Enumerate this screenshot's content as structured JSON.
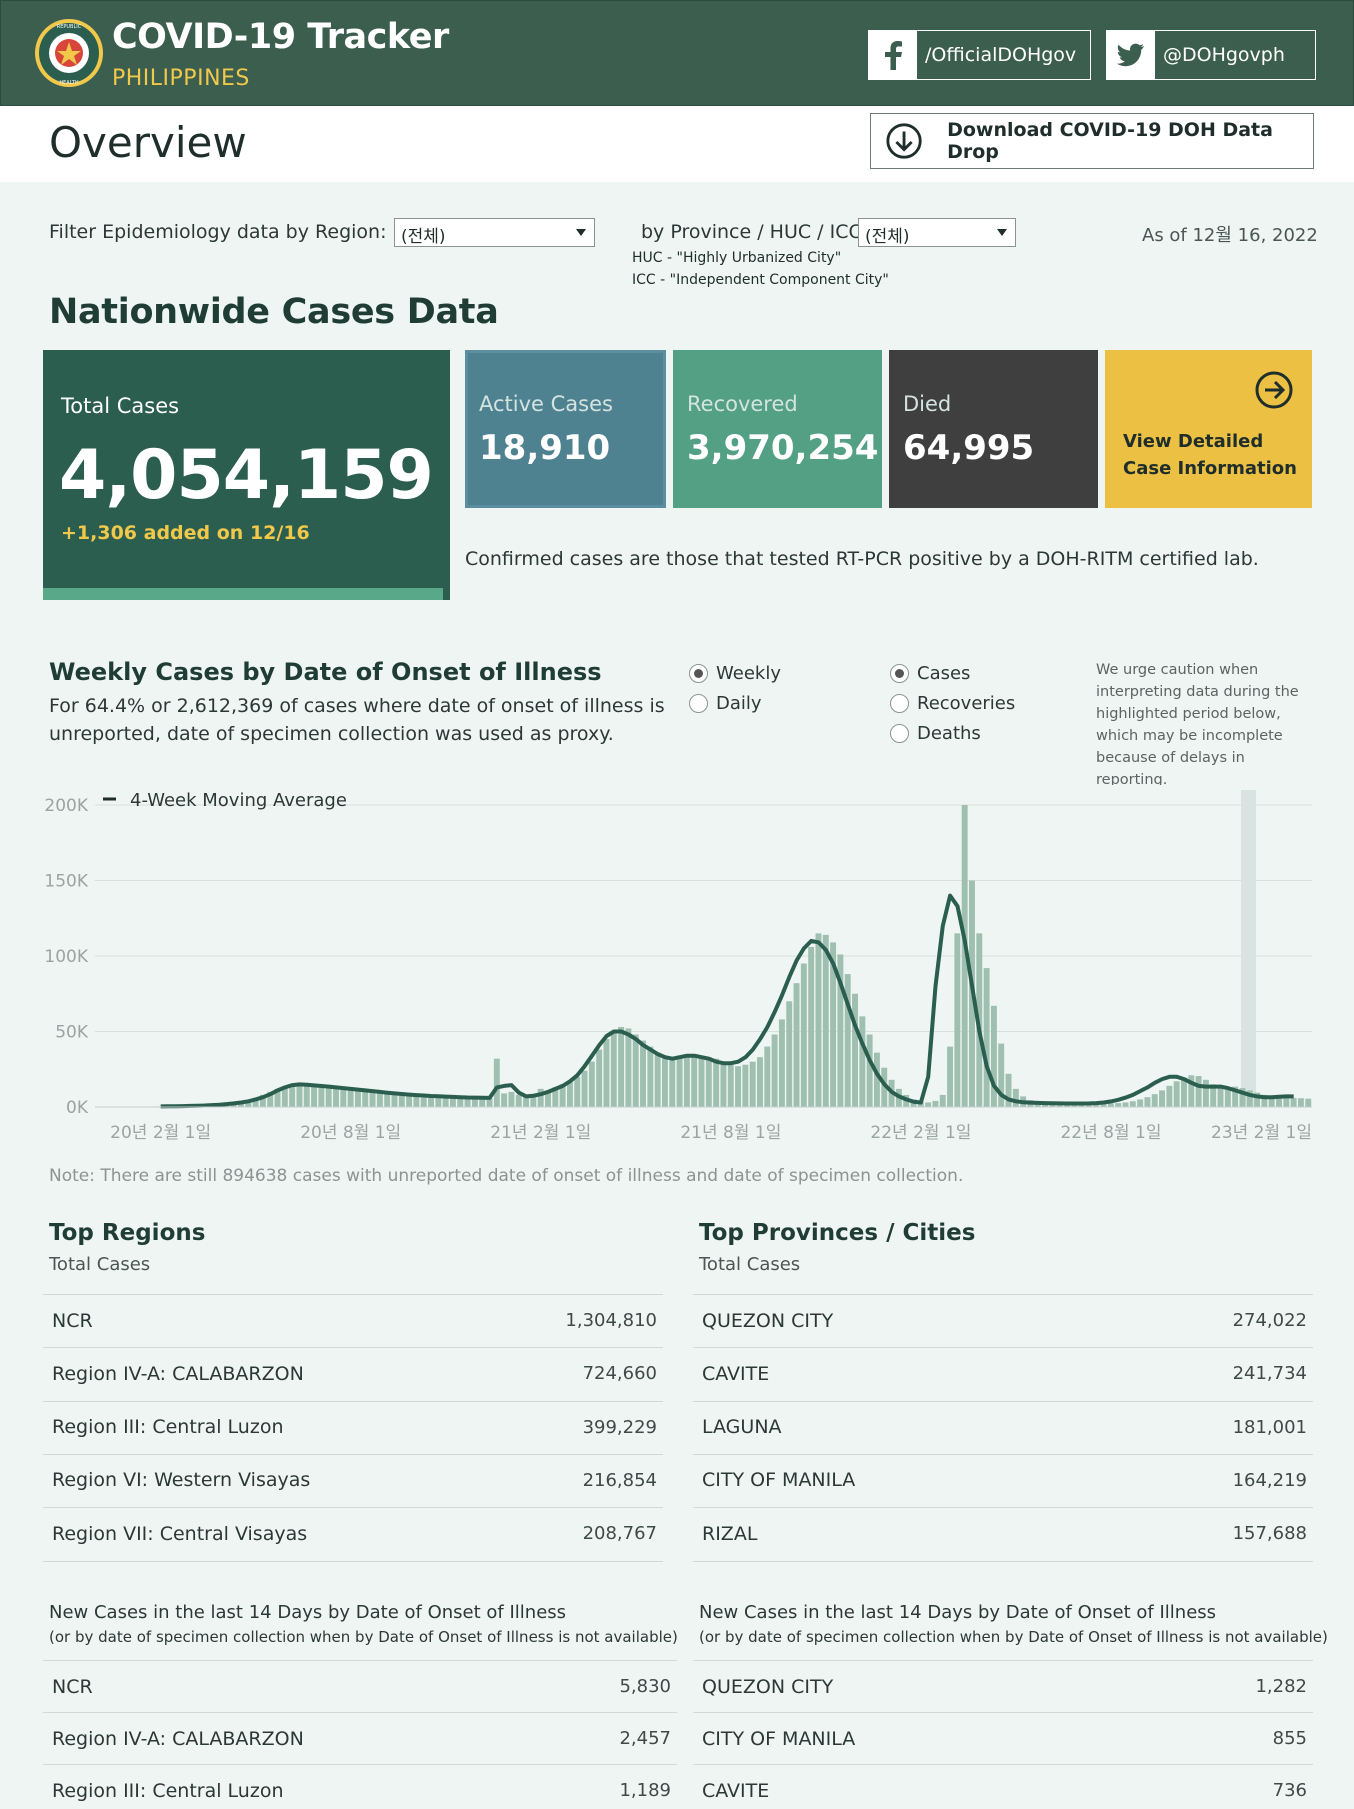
{
  "header": {
    "title": "COVID-19 Tracker",
    "subtitle": "PHILIPPINES",
    "facebook": "/OfficialDOHgov",
    "twitter": "@DOHgovph",
    "seal_text": "REPUBLIC OF THE PHILIPPINES DEPARTMENT OF HEALTH"
  },
  "overview": {
    "title": "Overview",
    "download_label": "Download COVID-19 DOH Data Drop"
  },
  "filters": {
    "region_label": "Filter Epidemiology data by Region:",
    "region_value": "(전체)",
    "province_label": "by Province / HUC / ICC:",
    "province_value": "(전체)",
    "huc": "HUC - \"Highly Urbanized City\"",
    "icc": "ICC - \"Independent Component City\"",
    "as_of": "As of 12월 16, 2022"
  },
  "nationwide": {
    "title": "Nationwide Cases Data",
    "total_label": "Total Cases",
    "total_value": "4,054,159",
    "added": "+1,306 added on 12/16",
    "active_label": "Active Cases",
    "active_value": "18,910",
    "recovered_label": "Recovered",
    "recovered_value": "3,970,254",
    "died_label": "Died",
    "died_value": "64,995",
    "detail_line1": "View Detailed",
    "detail_line2": "Case Information",
    "confirmed_note": "Confirmed cases are those that tested RT-PCR positive by a DOH-RITM certified lab."
  },
  "weekly": {
    "title": "Weekly Cases by Date of Onset of Illness",
    "desc": "For 64.4% or 2,612,369 of cases where date of onset of illness is unreported, date of specimen collection was used as proxy.",
    "period_options": [
      "Weekly",
      "Daily"
    ],
    "period_selected": "Weekly",
    "metric_options": [
      "Cases",
      "Recoveries",
      "Deaths"
    ],
    "metric_selected": "Cases",
    "caution": "We urge caution when interpreting data during the highlighted period below, which may be incomplete because of delays in reporting.",
    "note": "Note: There are still 894638 cases with unreported date of onset of illness and date of specimen collection."
  },
  "chart_data": {
    "type": "bar",
    "title": "Weekly Cases by Date of Onset of Illness",
    "legend": "4-Week Moving Average",
    "ylim": [
      0,
      200000
    ],
    "yticks": [
      0,
      50000,
      100000,
      150000,
      200000
    ],
    "ytick_labels": [
      "0K",
      "50K",
      "100K",
      "150K",
      "200K"
    ],
    "xtick_labels": [
      "20년 2월 1일",
      "20년 8월 1일",
      "21년 2월 1일",
      "21년 8월 1일",
      "22년 2월 1일",
      "22년 8월 1일",
      "23년 2월 1일"
    ],
    "xtick_weeks": [
      0,
      26,
      52,
      78,
      104,
      130,
      156
    ],
    "series": [
      {
        "name": "Weekly Cases",
        "values": [
          400,
          500,
          600,
          700,
          800,
          1000,
          1200,
          1500,
          1800,
          2200,
          2800,
          3500,
          4500,
          6000,
          8000,
          10000,
          12000,
          13500,
          14500,
          15000,
          14500,
          14000,
          13500,
          13000,
          12500,
          12000,
          11500,
          11000,
          10500,
          10000,
          9500,
          9000,
          8700,
          8400,
          8100,
          7800,
          7500,
          7200,
          7000,
          6800,
          6600,
          6400,
          6200,
          6000,
          6000,
          6000,
          32000,
          9000,
          10000,
          8000,
          7000,
          7500,
          12000,
          11000,
          13000,
          15000,
          17000,
          20000,
          24000,
          30000,
          38000,
          45000,
          50000,
          53000,
          52000,
          48000,
          44000,
          40000,
          36000,
          33000,
          32000,
          34000,
          33000,
          35000,
          34000,
          33000,
          32000,
          30000,
          28000,
          27000,
          28000,
          30000,
          33000,
          40000,
          48000,
          58000,
          70000,
          82000,
          95000,
          106000,
          115000,
          114000,
          109000,
          101000,
          88000,
          75000,
          60000,
          48000,
          36000,
          26000,
          18000,
          12000,
          8000,
          5000,
          3500,
          3000,
          4000,
          8000,
          40000,
          115000,
          200000,
          150000,
          115000,
          92000,
          67000,
          42000,
          22000,
          12000,
          7000,
          4500,
          3500,
          3000,
          2800,
          2700,
          2600,
          2500,
          2400,
          2300,
          2300,
          2300,
          2400,
          2600,
          3000,
          3800,
          5000,
          6500,
          8500,
          11000,
          14000,
          17000,
          19500,
          21000,
          20500,
          18000,
          15000,
          13000,
          13000,
          13500,
          12500,
          11000,
          9500,
          8000,
          7000,
          6500,
          6200,
          6000,
          5800,
          5500
        ]
      },
      {
        "name": "4-Week Moving Average",
        "values": [
          400,
          450,
          520,
          600,
          700,
          850,
          1000,
          1250,
          1550,
          1900,
          2400,
          3000,
          3800,
          5000,
          6500,
          8500,
          11000,
          13000,
          14500,
          15000,
          14800,
          14300,
          13900,
          13500,
          13000,
          12500,
          12000,
          11500,
          11000,
          10500,
          10000,
          9500,
          9000,
          8600,
          8200,
          7900,
          7600,
          7300,
          7100,
          6900,
          6700,
          6500,
          6300,
          6200,
          6100,
          6000,
          13000,
          14000,
          14500,
          9500,
          7000,
          7500,
          8500,
          10000,
          12000,
          14000,
          17000,
          21000,
          27000,
          34000,
          41000,
          47000,
          50000,
          50000,
          48000,
          45000,
          41000,
          38000,
          35000,
          33000,
          32000,
          33000,
          34000,
          34000,
          33000,
          32000,
          30000,
          29000,
          29000,
          30000,
          33000,
          38000,
          45000,
          53000,
          63000,
          74000,
          86000,
          97000,
          105000,
          110000,
          109000,
          104000,
          95000,
          82000,
          68000,
          54000,
          42000,
          31000,
          22000,
          15000,
          10000,
          7000,
          5000,
          3500,
          3000,
          20000,
          80000,
          120000,
          140000,
          133000,
          110000,
          80000,
          50000,
          27000,
          14000,
          8000,
          5000,
          3800,
          3200,
          2900,
          2700,
          2600,
          2500,
          2400,
          2300,
          2300,
          2300,
          2400,
          2600,
          3000,
          3700,
          4800,
          6200,
          8000,
          10500,
          13000,
          16000,
          18500,
          20000,
          20000,
          18500,
          16000,
          14000,
          13500,
          13500,
          13500,
          12500,
          11000,
          9500,
          8000,
          7000,
          6500,
          6500,
          6800,
          7000,
          7000
        ]
      }
    ]
  },
  "top_regions": {
    "title": "Top Regions",
    "sub": "Total Cases",
    "rows": [
      {
        "name": "NCR",
        "value": "1,304,810"
      },
      {
        "name": "Region IV-A: CALABARZON",
        "value": "724,660"
      },
      {
        "name": "Region III: Central Luzon",
        "value": "399,229"
      },
      {
        "name": "Region VI: Western Visayas",
        "value": "216,854"
      },
      {
        "name": "Region VII: Central Visayas",
        "value": "208,767"
      }
    ],
    "new_title": "New Cases in the last 14 Days by Date of Onset of Illness",
    "new_sub": "(or by date of specimen collection when by Date of Onset of Illness is not available)",
    "new_rows": [
      {
        "name": "NCR",
        "value": "5,830"
      },
      {
        "name": "Region IV-A: CALABARZON",
        "value": "2,457"
      },
      {
        "name": "Region III: Central Luzon",
        "value": "1,189"
      }
    ]
  },
  "top_provinces": {
    "title": "Top Provinces / Cities",
    "sub": "Total Cases",
    "rows": [
      {
        "name": "QUEZON CITY",
        "value": "274,022"
      },
      {
        "name": "CAVITE",
        "value": "241,734"
      },
      {
        "name": "LAGUNA",
        "value": "181,001"
      },
      {
        "name": "CITY OF MANILA",
        "value": "164,219"
      },
      {
        "name": "RIZAL",
        "value": "157,688"
      }
    ],
    "new_title": "New Cases in the last 14 Days by Date of Onset of Illness",
    "new_sub": "(or by date of specimen collection when by Date of Onset of Illness is not available)",
    "new_rows": [
      {
        "name": "QUEZON CITY",
        "value": "1,282"
      },
      {
        "name": "CITY OF MANILA",
        "value": "855"
      },
      {
        "name": "CAVITE",
        "value": "736"
      }
    ]
  },
  "colors": {
    "header_bg": "#3c5e4f",
    "accent_yellow": "#f1c84a",
    "total_card": "#2b5e4f",
    "active_card": "#4f8291",
    "recovered_card": "#53a085",
    "died_card": "#3f3f3f",
    "detail_card": "#ebc043",
    "bar": "#9fbfb1",
    "line": "#2b5e4f"
  }
}
